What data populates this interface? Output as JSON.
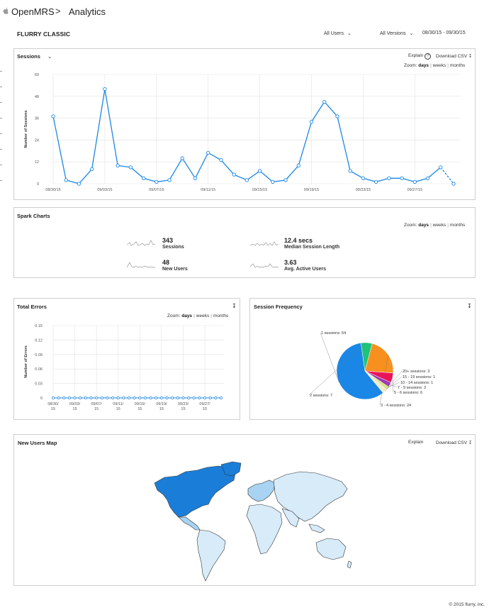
{
  "header": {
    "app": "OpenMRS",
    "page": "Analytics"
  },
  "toolbar": {
    "section": "FLURRY CLASSIC",
    "users": "All Users",
    "versions": "All Versions",
    "date_range": "08/30/15 - 09/30/15"
  },
  "sessions_panel": {
    "title": "Sessions",
    "explain": "Explain",
    "download": "Download CSV",
    "zoom_label": "Zoom:",
    "zoom_days": "days",
    "zoom_weeks": "weeks",
    "zoom_months": "months",
    "ylabel": "Number of Sessions"
  },
  "spark_panel": {
    "title": "Spark Charts",
    "zoom_label": "Zoom:",
    "zoom_days": "days",
    "zoom_weeks": "weeks",
    "zoom_months": "months",
    "items": [
      {
        "value": "343",
        "label": "Sessions"
      },
      {
        "value": "12.4 secs",
        "label": "Median Session Length"
      },
      {
        "value": "48",
        "label": "New Users"
      },
      {
        "value": "3.63",
        "label": "Avg. Active Users"
      }
    ]
  },
  "errors_panel": {
    "title": "Total Errors",
    "zoom_label": "Zoom:",
    "zoom_days": "days",
    "zoom_weeks": "weeks",
    "zoom_months": "months",
    "ylabel": "Number of Errors"
  },
  "freq_panel": {
    "title": "Session Frequency"
  },
  "map_panel": {
    "title": "New Users Map",
    "explain": "Explain",
    "download": "Download CSV"
  },
  "footer": "© 2015 flurry, inc.",
  "colors": {
    "accent": "#1a87e6",
    "map_dark": "#1a7ed9",
    "map_mid": "#a8d3f2",
    "map_light": "#d7ebf9"
  },
  "chart_data": [
    {
      "type": "line",
      "title": "Sessions",
      "ylabel": "Number of Sessions",
      "x": [
        "08/30/15",
        "08/31/15",
        "09/01/15",
        "09/02/15",
        "09/03/15",
        "09/04/15",
        "09/05/15",
        "09/06/15",
        "09/07/15",
        "09/08/15",
        "09/09/15",
        "09/10/15",
        "09/11/15",
        "09/12/15",
        "09/13/15",
        "09/14/15",
        "09/15/15",
        "09/16/15",
        "09/17/15",
        "09/18/15",
        "09/19/15",
        "09/20/15",
        "09/21/15",
        "09/22/15",
        "09/23/15",
        "09/24/15",
        "09/25/15",
        "09/26/15",
        "09/27/15",
        "09/28/15",
        "09/29/15",
        "09/30/15"
      ],
      "values": [
        37,
        2,
        0,
        8,
        52,
        10,
        9,
        3,
        1,
        2,
        14,
        3,
        17,
        13,
        5,
        2,
        7,
        1,
        2,
        10,
        34,
        45,
        37,
        7,
        3,
        1,
        3,
        3,
        1,
        3,
        9,
        0
      ],
      "xticks": [
        "08/30/15",
        "09/03/15",
        "09/07/15",
        "09/11/15",
        "09/15/15",
        "09/19/15",
        "09/23/15",
        "09/27/15"
      ],
      "yticks": [
        0,
        12,
        24,
        36,
        48,
        60
      ],
      "ylim": [
        0,
        60
      ],
      "grid": true
    },
    {
      "type": "line",
      "title": "Total Errors",
      "ylabel": "Number of Errors",
      "x": [
        "08/30/15",
        "08/31/15",
        "09/01/15",
        "09/02/15",
        "09/03/15",
        "09/04/15",
        "09/05/15",
        "09/06/15",
        "09/07/15",
        "09/08/15",
        "09/09/15",
        "09/10/15",
        "09/11/15",
        "09/12/15",
        "09/13/15",
        "09/14/15",
        "09/15/15",
        "09/16/15",
        "09/17/15",
        "09/18/15",
        "09/19/15",
        "09/20/15",
        "09/21/15",
        "09/22/15",
        "09/23/15",
        "09/24/15",
        "09/25/15",
        "09/26/15",
        "09/27/15",
        "09/28/15",
        "09/29/15",
        "09/30/15"
      ],
      "values": [
        0,
        0,
        0,
        0,
        0,
        0,
        0,
        0,
        0,
        0,
        0,
        0,
        0,
        0,
        0,
        0,
        0,
        0,
        0,
        0,
        0,
        0,
        0,
        0,
        0,
        0,
        0,
        0,
        0,
        0,
        0,
        0
      ],
      "xticks": [
        "08/30/",
        "09/03/",
        "09/07/",
        "09/11/",
        "09/15/",
        "09/19/",
        "09/23/",
        "09/27/"
      ],
      "xticks_year": "15",
      "yticks": [
        "0",
        "0.03",
        "0.06",
        "0.09",
        "0.12",
        "0.15"
      ],
      "ylim": [
        0,
        0.15
      ],
      "grid": true
    },
    {
      "type": "pie",
      "title": "Session Frequency",
      "labels": [
        "1 sessions: 64",
        "2 sessions: 7",
        "3 - 4 sessions: 24",
        "5 - 6 sessions: 6",
        "7 - 9 sessions: 3",
        "10 - 14 sessions: 1",
        "15 - 19 sessions: 1",
        "20+ sessions: 3"
      ],
      "values": [
        64,
        7,
        24,
        6,
        3,
        1,
        1,
        3
      ],
      "colors": [
        "#1a87e6",
        "#1cc47a",
        "#f7901e",
        "#e8145a",
        "#9b3ab8",
        "#d4e14a",
        "#c9d97e",
        "#f2ecc8"
      ]
    }
  ]
}
